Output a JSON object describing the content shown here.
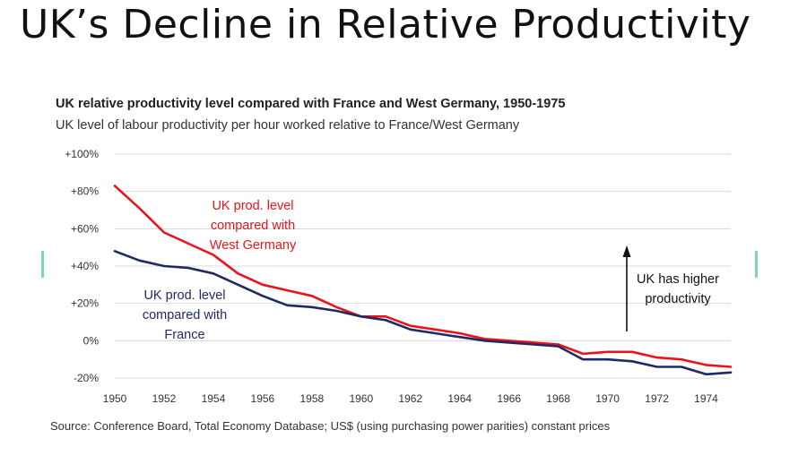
{
  "slide": {
    "title": "UK’s Decline in Relative Productivity"
  },
  "colors": {
    "series_germany": "#e8141b",
    "series_france": "#1f2a63",
    "decoration": "#7fd6b4",
    "gridline": "#d9d9d9"
  },
  "chart_data": {
    "type": "line",
    "title": "UK relative productivity level compared with France and West Germany, 1950-1975",
    "subtitle": "UK level of labour productivity per hour  worked relative to France/West Germany",
    "xlabel": "",
    "ylabel": "",
    "ylim": [
      -20,
      100
    ],
    "xlim": [
      1950,
      1975
    ],
    "grid": "horizontal",
    "yticks": [
      "+100%",
      "+80%",
      "+60%",
      "+40%",
      "+20%",
      "0%",
      "-20%"
    ],
    "ytick_values": [
      100,
      80,
      60,
      40,
      20,
      0,
      -20
    ],
    "xticks": [
      "1950",
      "1952",
      "1954",
      "1956",
      "1958",
      "1960",
      "1962",
      "1964",
      "1966",
      "1968",
      "1970",
      "1972",
      "1974"
    ],
    "xtick_values": [
      1950,
      1952,
      1954,
      1956,
      1958,
      1960,
      1962,
      1964,
      1966,
      1968,
      1970,
      1972,
      1974
    ],
    "x": [
      1950,
      1951,
      1952,
      1953,
      1954,
      1955,
      1956,
      1957,
      1958,
      1959,
      1960,
      1961,
      1962,
      1963,
      1964,
      1965,
      1966,
      1967,
      1968,
      1969,
      1970,
      1971,
      1972,
      1973,
      1974,
      1975
    ],
    "series": [
      {
        "values": [
          83,
          71,
          58,
          52,
          46,
          36,
          30,
          27,
          24,
          18,
          13,
          13,
          8,
          6,
          4,
          1,
          0,
          -1,
          -2,
          -7,
          -6,
          -6,
          -9,
          -10,
          -13,
          -14
        ]
      },
      {
        "values": [
          48,
          43,
          40,
          39,
          36,
          30,
          24,
          19,
          18,
          16,
          13,
          11,
          6,
          4,
          2,
          0,
          -1,
          -2,
          -3,
          -10,
          -10,
          -11,
          -14,
          -14,
          -18,
          -17
        ]
      }
    ],
    "annotations": {
      "germany_label": [
        "UK prod. level",
        "compared with",
        "West Germany"
      ],
      "france_label": [
        "UK prod. level",
        "compared with",
        "France"
      ],
      "arrow_label": [
        "UK has higher",
        "productivity"
      ]
    }
  },
  "source": "Source: Conference Board, Total Economy Database; US$ (using purchasing power parities) constant prices"
}
